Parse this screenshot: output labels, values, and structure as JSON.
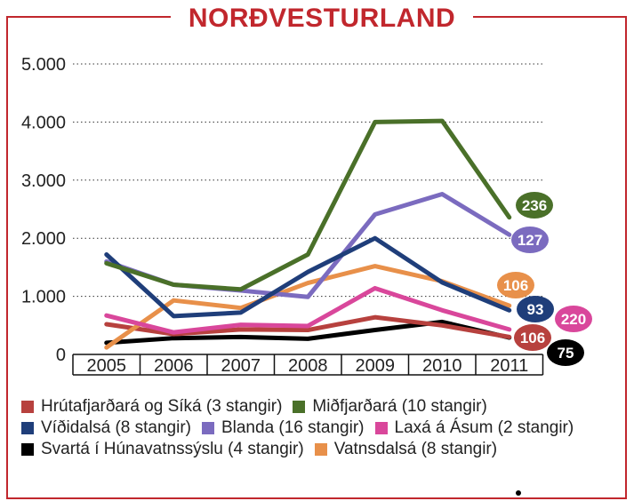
{
  "chart_data": {
    "type": "line",
    "title": "NORÐVESTURLAND",
    "x": [
      "2005",
      "2006",
      "2007",
      "2008",
      "2009",
      "2010",
      "2011"
    ],
    "ylim": [
      0,
      5000
    ],
    "yticks": [
      {
        "value": 0,
        "label": "0"
      },
      {
        "value": 1000,
        "label": "1.000"
      },
      {
        "value": 2000,
        "label": "2.000"
      },
      {
        "value": 3000,
        "label": "3.000"
      },
      {
        "value": 4000,
        "label": "4.000"
      },
      {
        "value": 5000,
        "label": "5.000"
      }
    ],
    "grid": "dotted horizontal",
    "legend_position": "bottom",
    "series": [
      {
        "name": "Hrútafjarðará og Síká (3 stangir)",
        "color": "#b7413e",
        "values": [
          520,
          350,
          430,
          420,
          640,
          500,
          300
        ],
        "end_label": "106"
      },
      {
        "name": "Miðfjarðará (10 stangir)",
        "color": "#4a7029",
        "values": [
          1570,
          1200,
          1120,
          1720,
          4000,
          4020,
          2360
        ],
        "end_label": "236"
      },
      {
        "name": "Víðidalsá (8 stangir)",
        "color": "#1f3e7a",
        "values": [
          1720,
          660,
          720,
          1420,
          2000,
          1240,
          760
        ],
        "end_label": "93"
      },
      {
        "name": "Blanda (16 stangir)",
        "color": "#7b6bbf",
        "values": [
          1600,
          1200,
          1100,
          990,
          2410,
          2760,
          2060
        ],
        "end_label": "127"
      },
      {
        "name": "Laxá á Ásum (2 stangir)",
        "color": "#d9479b",
        "values": [
          670,
          380,
          510,
          490,
          1140,
          760,
          430
        ],
        "end_label": "220"
      },
      {
        "name": "Svartá í Húnavatnssýslu (4 stangir)",
        "color": "#000000",
        "values": [
          200,
          280,
          300,
          270,
          420,
          560,
          290
        ],
        "end_label": "75"
      },
      {
        "name": "Vatnsdalsá (8 stangir)",
        "color": "#e8904a",
        "values": [
          120,
          930,
          800,
          1230,
          1520,
          1260,
          840
        ],
        "end_label": "106"
      }
    ]
  }
}
